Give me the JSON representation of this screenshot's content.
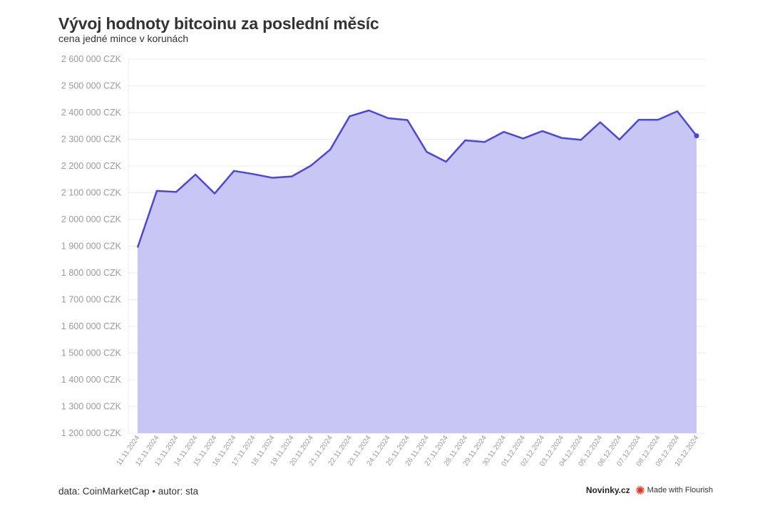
{
  "header": {
    "title": "Vývoj hodnoty bitcoinu za poslední měsíc",
    "subtitle": "cena jedné mince v korunách"
  },
  "footer": {
    "source": "data: CoinMarketCap • autor: sta",
    "brand": "Novinky.cz",
    "made_with": "Made with Flourish"
  },
  "colors": {
    "line": "#4b47d6",
    "area": "#c8c6f5",
    "grid": "#ececec",
    "axis_text": "#9a9a9a",
    "flourish_red": "#e0301e"
  },
  "chart_data": {
    "type": "area",
    "title": "Vývoj hodnoty bitcoinu za poslední měsíc",
    "subtitle": "cena jedné mince v korunách",
    "xlabel": "",
    "ylabel": "",
    "ylim": [
      1200000,
      2600000
    ],
    "yticks": [
      1200000,
      1300000,
      1400000,
      1500000,
      1600000,
      1700000,
      1800000,
      1900000,
      2000000,
      2100000,
      2200000,
      2300000,
      2400000,
      2500000,
      2600000
    ],
    "ytick_labels": [
      "1 200 000 CZK",
      "1 300 000 CZK",
      "1 400 000 CZK",
      "1 500 000 CZK",
      "1 600 000 CZK",
      "1 700 000 CZK",
      "1 800 000 CZK",
      "1 900 000 CZK",
      "2 000 000 CZK",
      "2 100 000 CZK",
      "2 200 000 CZK",
      "2 300 000 CZK",
      "2 400 000 CZK",
      "2 500 000 CZK",
      "2 600 000 CZK"
    ],
    "grid": true,
    "legend": "none",
    "categories": [
      "11.11.2024",
      "12.11.2024",
      "13.11.2024",
      "14.11.2024",
      "15.11.2024",
      "16.11.2024",
      "17.11.2024",
      "18.11.2024",
      "19.11.2024",
      "20.11.2024",
      "21.11.2024",
      "22.11.2024",
      "23.11.2024",
      "24.11.2024",
      "25.11.2024",
      "26.11.2024",
      "27.11.2024",
      "28.11.2024",
      "29.11.2024",
      "30.11.2024",
      "01.12.2024",
      "02.12.2024",
      "03.12.2024",
      "04.12.2024",
      "05.12.2024",
      "06.12.2024",
      "07.12.2024",
      "08.12.2024",
      "09.12.2024",
      "10.12.2024"
    ],
    "values": [
      1895000,
      2107000,
      2103000,
      2168000,
      2097000,
      2182000,
      2170000,
      2156000,
      2161000,
      2202000,
      2262000,
      2386000,
      2408000,
      2379000,
      2372000,
      2253000,
      2216000,
      2296000,
      2290000,
      2328000,
      2303000,
      2331000,
      2305000,
      2298000,
      2364000,
      2299000,
      2373000,
      2373000,
      2405000,
      2313000
    ]
  }
}
